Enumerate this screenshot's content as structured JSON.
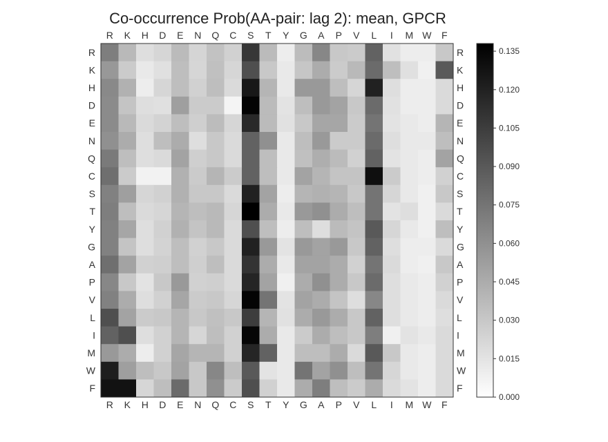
{
  "chart_data": {
    "type": "heatmap",
    "title": "Co-occurrence Prob(AA-pair: lag 2): mean, GPCR",
    "x_labels": [
      "R",
      "K",
      "H",
      "D",
      "E",
      "N",
      "Q",
      "C",
      "S",
      "T",
      "Y",
      "G",
      "A",
      "P",
      "V",
      "L",
      "I",
      "M",
      "W",
      "F"
    ],
    "y_labels": [
      "R",
      "K",
      "H",
      "D",
      "E",
      "N",
      "Q",
      "C",
      "S",
      "T",
      "Y",
      "G",
      "A",
      "P",
      "V",
      "L",
      "I",
      "M",
      "W",
      "F"
    ],
    "values": [
      [
        0.07,
        0.038,
        0.018,
        0.022,
        0.037,
        0.023,
        0.033,
        0.025,
        0.108,
        0.037,
        0.01,
        0.036,
        0.065,
        0.03,
        0.028,
        0.085,
        0.016,
        0.01,
        0.01,
        0.03
      ],
      [
        0.056,
        0.028,
        0.012,
        0.017,
        0.035,
        0.022,
        0.034,
        0.022,
        0.095,
        0.03,
        0.012,
        0.031,
        0.045,
        0.028,
        0.038,
        0.08,
        0.035,
        0.017,
        0.008,
        0.09
      ],
      [
        0.064,
        0.042,
        0.01,
        0.022,
        0.035,
        0.025,
        0.035,
        0.02,
        0.125,
        0.04,
        0.012,
        0.055,
        0.055,
        0.035,
        0.022,
        0.12,
        0.018,
        0.01,
        0.01,
        0.02
      ],
      [
        0.063,
        0.032,
        0.018,
        0.017,
        0.052,
        0.028,
        0.028,
        0.006,
        0.136,
        0.037,
        0.015,
        0.035,
        0.055,
        0.05,
        0.03,
        0.08,
        0.016,
        0.01,
        0.01,
        0.02
      ],
      [
        0.063,
        0.038,
        0.02,
        0.024,
        0.035,
        0.026,
        0.036,
        0.022,
        0.116,
        0.037,
        0.016,
        0.03,
        0.048,
        0.048,
        0.028,
        0.075,
        0.015,
        0.012,
        0.01,
        0.04
      ],
      [
        0.06,
        0.045,
        0.018,
        0.035,
        0.045,
        0.018,
        0.03,
        0.02,
        0.085,
        0.06,
        0.012,
        0.035,
        0.055,
        0.028,
        0.028,
        0.08,
        0.018,
        0.012,
        0.012,
        0.035
      ],
      [
        0.072,
        0.035,
        0.018,
        0.02,
        0.05,
        0.026,
        0.03,
        0.02,
        0.085,
        0.035,
        0.012,
        0.034,
        0.044,
        0.037,
        0.025,
        0.085,
        0.015,
        0.012,
        0.01,
        0.05
      ],
      [
        0.078,
        0.028,
        0.007,
        0.007,
        0.042,
        0.028,
        0.04,
        0.028,
        0.085,
        0.035,
        0.012,
        0.05,
        0.04,
        0.032,
        0.032,
        0.13,
        0.028,
        0.012,
        0.01,
        0.025
      ],
      [
        0.068,
        0.052,
        0.022,
        0.025,
        0.042,
        0.03,
        0.03,
        0.02,
        0.12,
        0.05,
        0.01,
        0.04,
        0.042,
        0.04,
        0.03,
        0.075,
        0.022,
        0.012,
        0.008,
        0.03
      ],
      [
        0.07,
        0.035,
        0.02,
        0.022,
        0.04,
        0.035,
        0.038,
        0.022,
        0.138,
        0.045,
        0.012,
        0.055,
        0.06,
        0.045,
        0.035,
        0.075,
        0.015,
        0.018,
        0.008,
        0.02
      ],
      [
        0.068,
        0.048,
        0.018,
        0.025,
        0.042,
        0.032,
        0.038,
        0.02,
        0.095,
        0.035,
        0.01,
        0.035,
        0.018,
        0.037,
        0.032,
        0.09,
        0.022,
        0.012,
        0.008,
        0.035
      ],
      [
        0.068,
        0.032,
        0.018,
        0.024,
        0.035,
        0.025,
        0.03,
        0.02,
        0.12,
        0.055,
        0.015,
        0.055,
        0.05,
        0.055,
        0.03,
        0.085,
        0.018,
        0.01,
        0.01,
        0.02
      ],
      [
        0.078,
        0.05,
        0.025,
        0.026,
        0.035,
        0.026,
        0.035,
        0.02,
        0.11,
        0.045,
        0.012,
        0.05,
        0.05,
        0.045,
        0.025,
        0.075,
        0.02,
        0.01,
        0.008,
        0.03
      ],
      [
        0.065,
        0.03,
        0.015,
        0.03,
        0.055,
        0.025,
        0.026,
        0.02,
        0.118,
        0.05,
        0.008,
        0.045,
        0.06,
        0.045,
        0.03,
        0.08,
        0.018,
        0.012,
        0.01,
        0.025
      ],
      [
        0.068,
        0.045,
        0.018,
        0.025,
        0.048,
        0.028,
        0.03,
        0.022,
        0.136,
        0.075,
        0.015,
        0.05,
        0.045,
        0.032,
        0.018,
        0.065,
        0.018,
        0.012,
        0.01,
        0.02
      ],
      [
        0.095,
        0.05,
        0.028,
        0.03,
        0.04,
        0.03,
        0.034,
        0.03,
        0.105,
        0.04,
        0.016,
        0.045,
        0.055,
        0.045,
        0.03,
        0.085,
        0.018,
        0.012,
        0.01,
        0.018
      ],
      [
        0.085,
        0.095,
        0.018,
        0.025,
        0.04,
        0.022,
        0.035,
        0.025,
        0.135,
        0.045,
        0.012,
        0.028,
        0.045,
        0.035,
        0.03,
        0.07,
        0.008,
        0.015,
        0.012,
        0.02
      ],
      [
        0.055,
        0.045,
        0.01,
        0.025,
        0.048,
        0.04,
        0.04,
        0.025,
        0.118,
        0.085,
        0.012,
        0.035,
        0.035,
        0.045,
        0.02,
        0.09,
        0.03,
        0.012,
        0.01,
        0.02
      ],
      [
        0.122,
        0.052,
        0.035,
        0.03,
        0.05,
        0.03,
        0.065,
        0.035,
        0.09,
        0.015,
        0.012,
        0.075,
        0.05,
        0.06,
        0.035,
        0.075,
        0.022,
        0.012,
        0.01,
        0.02
      ],
      [
        0.128,
        0.128,
        0.022,
        0.035,
        0.08,
        0.03,
        0.06,
        0.028,
        0.095,
        0.025,
        0.012,
        0.045,
        0.07,
        0.035,
        0.028,
        0.045,
        0.02,
        0.015,
        0.01,
        0.02
      ]
    ],
    "colorbar": {
      "min": 0.0,
      "max": 0.138,
      "ticks": [
        "0.000",
        "0.015",
        "0.030",
        "0.045",
        "0.060",
        "0.075",
        "0.090",
        "0.105",
        "0.120",
        "0.135"
      ],
      "colormap": "Greys",
      "low_color": "#ffffff",
      "high_color": "#000000"
    }
  }
}
